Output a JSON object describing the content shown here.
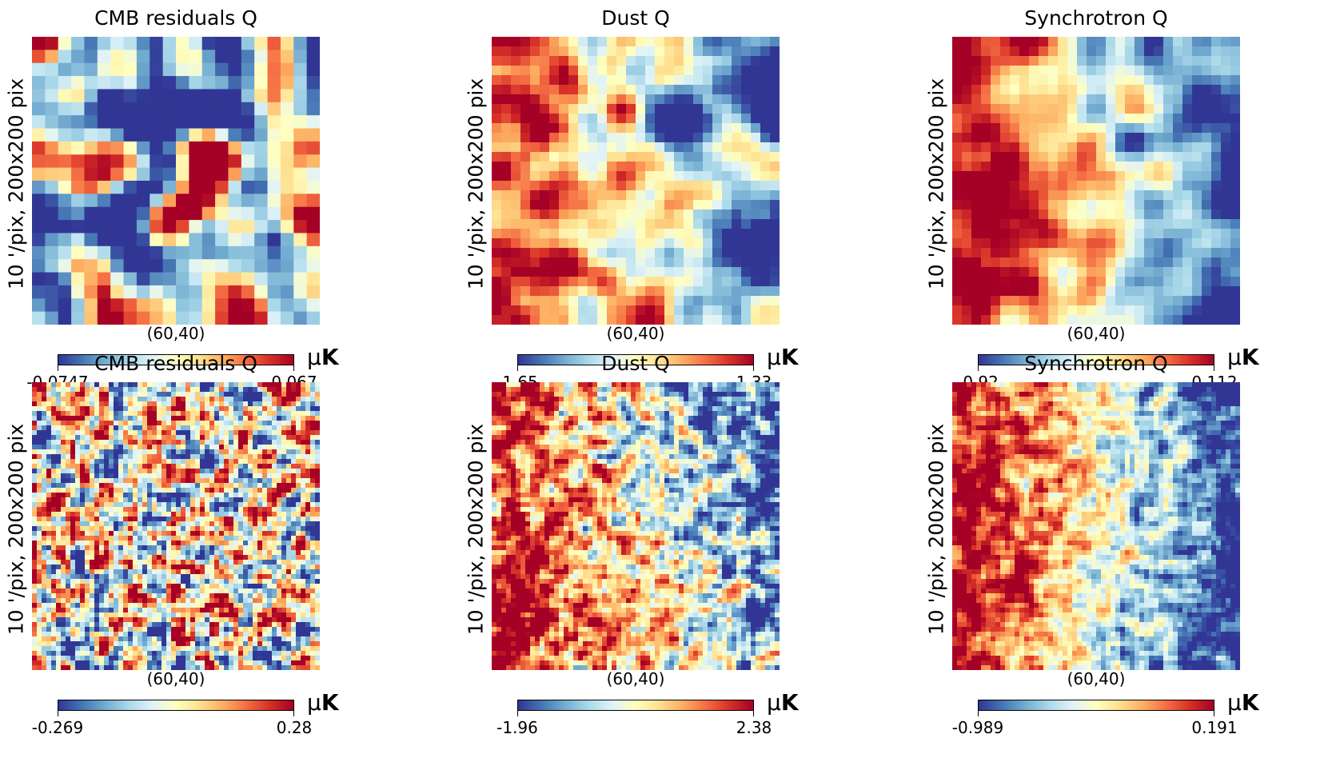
{
  "figure": {
    "colormap": [
      "#313695",
      "#4575b4",
      "#74add1",
      "#abd9e9",
      "#e0f3f8",
      "#ffffbf",
      "#fee090",
      "#fdae61",
      "#f46d43",
      "#d73027",
      "#a50026"
    ]
  },
  "chart_data": [
    {
      "type": "heatmap",
      "title": "CMB residuals Q",
      "ylabel": "10 '/pix, 200x200 pix",
      "xlabel": "(60,40)",
      "colorbar": {
        "min": -0.0747,
        "max": 0.067,
        "min_label": "-0.0747",
        "max_label": "0.067",
        "unit_prefix": "μ",
        "unit_main": "K"
      },
      "pattern": "random",
      "scale": 22,
      "smooth": 2,
      "noise": 0.0
    },
    {
      "type": "heatmap",
      "title": "Dust Q",
      "ylabel": "10 '/pix, 200x200 pix",
      "xlabel": "(60,40)",
      "colorbar": {
        "min": -1.65,
        "max": 1.33,
        "min_label": "-1.65",
        "max_label": "1.33",
        "unit_prefix": "μ",
        "unit_main": "K"
      },
      "pattern": "dust",
      "scale": 30,
      "smooth": 2,
      "noise": 0.25
    },
    {
      "type": "heatmap",
      "title": "Synchrotron Q",
      "ylabel": "10 '/pix, 200x200 pix",
      "xlabel": "(60,40)",
      "colorbar": {
        "min": -0.92,
        "max": 0.112,
        "min_label": "-0.92",
        "max_label": "0.112",
        "unit_prefix": "μ",
        "unit_main": "K"
      },
      "pattern": "sync",
      "scale": 30,
      "smooth": 2,
      "noise": 0.2
    },
    {
      "type": "heatmap",
      "title": "CMB residuals Q",
      "ylabel": "10 '/pix, 200x200 pix",
      "xlabel": "(60,40)",
      "colorbar": {
        "min": -0.269,
        "max": 0.28,
        "min_label": "-0.269",
        "max_label": "0.28",
        "unit_prefix": "μ",
        "unit_main": "K"
      },
      "pattern": "random",
      "scale": 60,
      "smooth": 1,
      "noise": 0.0
    },
    {
      "type": "heatmap",
      "title": "Dust Q",
      "ylabel": "10 '/pix, 200x200 pix",
      "xlabel": "(60,40)",
      "colorbar": {
        "min": -1.96,
        "max": 2.38,
        "min_label": "-1.96",
        "max_label": "2.38",
        "unit_prefix": "μ",
        "unit_main": "K"
      },
      "pattern": "dust",
      "scale": 60,
      "smooth": 1,
      "noise": 0.45
    },
    {
      "type": "heatmap",
      "title": "Synchrotron Q",
      "ylabel": "10 '/pix, 200x200 pix",
      "xlabel": "(60,40)",
      "colorbar": {
        "min": -0.989,
        "max": 0.191,
        "min_label": "-0.989",
        "max_label": "0.191",
        "unit_prefix": "μ",
        "unit_main": "K"
      },
      "pattern": "sync",
      "scale": 60,
      "smooth": 1,
      "noise": 0.35
    }
  ]
}
